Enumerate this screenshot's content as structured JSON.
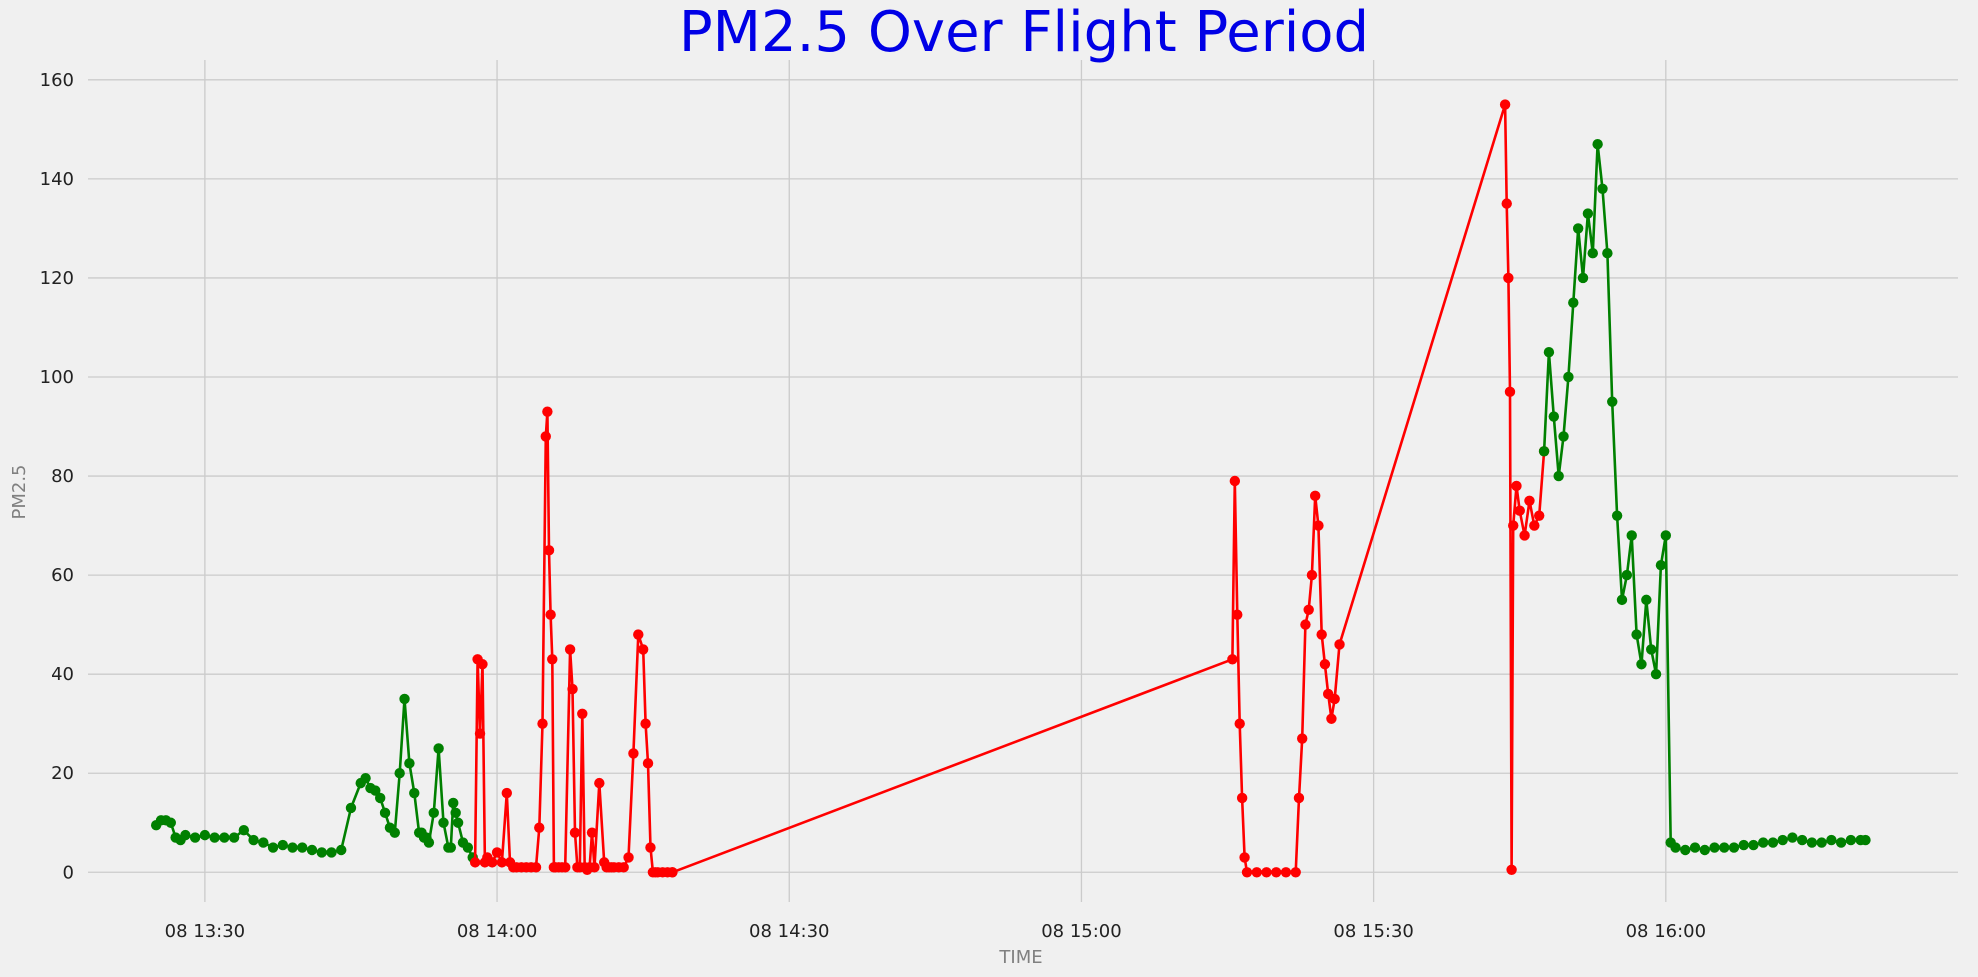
{
  "chart_data": {
    "type": "line",
    "title": "PM2.5 Over Flight Period",
    "xlabel": "TIME",
    "ylabel": "PM2.5",
    "x_unit": "time of day (day 08)",
    "xlim": [
      "13:18",
      "16:30"
    ],
    "ylim": [
      -6,
      164
    ],
    "grid": true,
    "x_ticks": [
      {
        "t": "13:30",
        "label": "08 13:30"
      },
      {
        "t": "14:00",
        "label": "08 14:00"
      },
      {
        "t": "14:30",
        "label": "08 14:30"
      },
      {
        "t": "15:00",
        "label": "08 15:00"
      },
      {
        "t": "15:30",
        "label": "08 15:30"
      },
      {
        "t": "16:00",
        "label": "08 16:00"
      }
    ],
    "y_ticks": [
      0,
      20,
      40,
      60,
      80,
      100,
      120,
      140,
      160
    ],
    "colors": {
      "green": "#008000",
      "red": "#ff0000",
      "title": "#0000e6"
    },
    "series": [
      {
        "color": "green",
        "x": [
          "13:25:00",
          "13:25:30",
          "13:26:00",
          "13:26:30",
          "13:27:00",
          "13:27:30",
          "13:28:00",
          "13:29:00",
          "13:30:00",
          "13:31:00",
          "13:32:00",
          "13:33:00",
          "13:34:00",
          "13:35:00",
          "13:36:00",
          "13:37:00",
          "13:38:00",
          "13:39:00",
          "13:40:00",
          "13:41:00",
          "13:42:00",
          "13:43:00",
          "13:44:00",
          "13:45:00",
          "13:46:00",
          "13:46:30",
          "13:47:00",
          "13:47:30",
          "13:48:00",
          "13:48:30",
          "13:49:00",
          "13:49:30",
          "13:50:00",
          "13:50:30",
          "13:51:00",
          "13:51:30",
          "13:52:00",
          "13:52:15",
          "13:52:30",
          "13:52:45",
          "13:53:00",
          "13:53:30",
          "13:54:00",
          "13:54:30",
          "13:55:00",
          "13:55:15",
          "13:55:30",
          "13:55:45",
          "13:56:00",
          "13:56:30",
          "13:57:00",
          "13:57:30"
        ],
        "y": [
          9.5,
          10.5,
          10.5,
          10,
          7,
          6.5,
          7.5,
          7,
          7.5,
          7,
          7,
          7,
          8.5,
          6.5,
          6,
          5,
          5.5,
          5,
          5,
          4.5,
          4,
          4,
          4.5,
          13,
          18,
          19,
          17,
          16.5,
          15,
          12,
          9,
          8,
          20,
          35,
          22,
          16,
          8,
          8,
          7,
          7,
          6,
          12,
          25,
          10,
          5,
          5,
          14,
          12,
          10,
          6,
          5,
          3
        ]
      },
      {
        "color": "red",
        "x": [
          "13:57:45",
          "13:58:00",
          "13:58:15",
          "13:58:30",
          "13:58:45",
          "13:59:00",
          "13:59:30",
          "14:00:00",
          "14:00:30",
          "14:01:00",
          "14:01:20",
          "14:01:40",
          "14:02:00",
          "14:02:30",
          "14:03:00",
          "14:03:30",
          "14:04:00",
          "14:04:20",
          "14:04:40",
          "14:05:00",
          "14:05:10",
          "14:05:20",
          "14:05:30",
          "14:05:40",
          "14:05:50",
          "14:06:00",
          "14:06:20",
          "14:06:40",
          "14:07:00",
          "14:07:30",
          "14:07:45",
          "14:08:00",
          "14:08:15",
          "14:08:30",
          "14:08:45",
          "14:09:00",
          "14:09:15",
          "14:09:30",
          "14:09:45",
          "14:10:00",
          "14:10:30",
          "14:11:00",
          "14:11:15",
          "14:11:30",
          "14:11:45",
          "14:12:00",
          "14:12:30",
          "14:13:00",
          "14:13:30",
          "14:14:00",
          "14:14:30",
          "14:15:00",
          "14:15:15",
          "14:15:30",
          "14:15:45",
          "14:16:00",
          "14:16:15",
          "14:16:30",
          "14:17:00",
          "14:17:30",
          "14:18:00"
        ],
        "y": [
          2,
          43,
          28,
          42,
          2,
          3,
          2,
          4,
          2,
          16,
          2,
          1,
          1,
          1,
          1,
          1,
          1,
          9,
          30,
          88,
          93,
          65,
          52,
          43,
          1,
          1,
          1,
          1,
          1,
          45,
          37,
          8,
          1,
          1,
          32,
          1,
          0.5,
          1,
          8,
          1,
          18,
          2,
          1,
          1,
          1,
          1,
          1,
          1,
          3,
          24,
          48,
          45,
          30,
          22,
          5,
          0,
          0,
          0,
          0,
          0,
          0
        ]
      },
      {
        "color": "red",
        "x": [
          "14:18:00",
          "15:15:30",
          "15:15:45",
          "15:16:00",
          "15:16:15",
          "15:16:30",
          "15:16:45",
          "15:17:00",
          "15:18:00",
          "15:19:00",
          "15:20:00",
          "15:21:00",
          "15:22:00",
          "15:22:20",
          "15:22:40",
          "15:23:00",
          "15:23:20",
          "15:23:40",
          "15:24:00",
          "15:24:20",
          "15:24:40",
          "15:25:00",
          "15:25:20",
          "15:25:40",
          "15:26:00",
          "15:26:30",
          "15:43:30",
          "15:43:40",
          "15:43:50",
          "15:44:00",
          "15:44:10",
          "15:44:20",
          "15:44:40",
          "15:45:00",
          "15:45:30",
          "15:46:00",
          "15:46:30",
          "15:47:00",
          "15:47:30"
        ],
        "y": [
          0,
          43,
          79,
          52,
          30,
          15,
          3,
          0,
          0,
          0,
          0,
          0,
          0,
          15,
          27,
          50,
          53,
          60,
          76,
          70,
          48,
          42,
          36,
          31,
          35,
          46,
          155,
          135,
          120,
          97,
          0.5,
          70,
          78,
          73,
          68,
          75,
          70,
          72,
          85
        ]
      },
      {
        "color": "green",
        "x": [
          "15:47:30",
          "15:48:00",
          "15:48:30",
          "15:49:00",
          "15:49:30",
          "15:50:00",
          "15:50:30",
          "15:51:00",
          "15:51:30",
          "15:52:00",
          "15:52:30",
          "15:53:00",
          "15:53:30",
          "15:54:00",
          "15:54:30",
          "15:55:00",
          "15:55:30",
          "15:56:00",
          "15:56:30",
          "15:57:00",
          "15:57:30",
          "15:58:00",
          "15:58:30",
          "15:59:00",
          "15:59:30",
          "16:00:00",
          "16:00:30",
          "16:01:00",
          "16:02:00",
          "16:03:00",
          "16:04:00",
          "16:05:00",
          "16:06:00",
          "16:07:00",
          "16:08:00",
          "16:09:00",
          "16:10:00",
          "16:11:00",
          "16:12:00",
          "16:13:00",
          "16:14:00",
          "16:15:00",
          "16:16:00",
          "16:17:00",
          "16:18:00",
          "16:19:00",
          "16:20:00",
          "16:20:30"
        ],
        "y": [
          85,
          105,
          92,
          80,
          88,
          100,
          115,
          130,
          120,
          133,
          125,
          147,
          138,
          125,
          95,
          72,
          55,
          60,
          68,
          48,
          42,
          55,
          45,
          40,
          62,
          68,
          6,
          5,
          4.5,
          5,
          4.5,
          5,
          5,
          5,
          5.5,
          5.5,
          6,
          6,
          6.5,
          7,
          6.5,
          6,
          6,
          6.5,
          6,
          6.5,
          6.5,
          6.5
        ]
      }
    ]
  }
}
